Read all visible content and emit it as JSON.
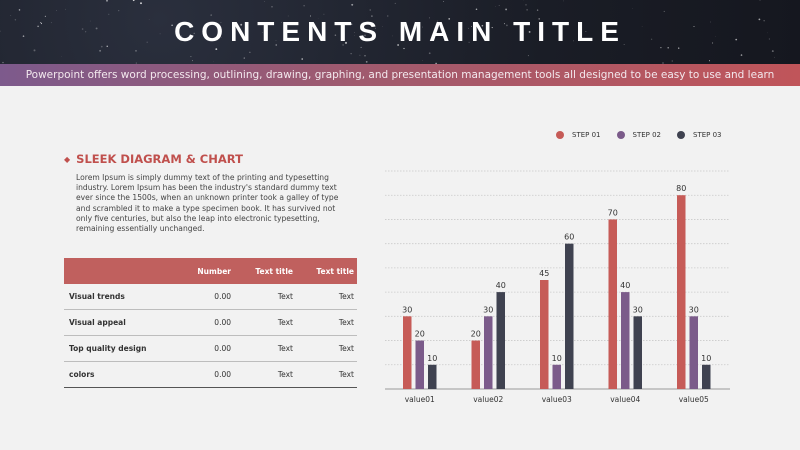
{
  "slide": {
    "title": "CONTENTS MAIN TITLE",
    "subtitle": "Powerpoint offers word processing, outlining, drawing, graphing, and presentation management tools all designed to be easy to use and learn"
  },
  "section": {
    "bullet": "◆",
    "heading": "SLEEK DIAGRAM & CHART",
    "body": "Lorem Ipsum is simply dummy text of the printing and typesetting industry. Lorem Ipsum has been the industry's standard dummy text ever since the 1500s, when an unknown printer took a galley of type and scrambled it to make a type specimen book. It has survived not only five centuries, but also the leap into electronic typesetting, remaining essentially unchanged."
  },
  "table": {
    "headers": [
      "",
      "Number",
      "Text title",
      "Text title"
    ],
    "rows": [
      [
        "Visual trends",
        "0.00",
        "Text",
        "Text"
      ],
      [
        "Visual appeal",
        "0.00",
        "Text",
        "Text"
      ],
      [
        "Top quality design",
        "0.00",
        "Text",
        "Text"
      ],
      [
        "colors",
        "0.00",
        "Text",
        "Text"
      ]
    ]
  },
  "colors": {
    "accent_red": "#c0504d",
    "step1": "#c65b57",
    "step2": "#7b5b8a",
    "step3": "#3f4250"
  },
  "chart_data": {
    "type": "bar",
    "categories": [
      "value01",
      "value02",
      "value03",
      "value04",
      "value05"
    ],
    "series": [
      {
        "name": "STEP 01",
        "values": [
          30,
          20,
          45,
          70,
          80
        ],
        "color": "#c65b57"
      },
      {
        "name": "STEP 02",
        "values": [
          20,
          30,
          10,
          40,
          30
        ],
        "color": "#7b5b8a"
      },
      {
        "name": "STEP 03",
        "values": [
          10,
          40,
          60,
          30,
          10
        ],
        "color": "#3f4250"
      }
    ],
    "data_labels": [
      [
        "30",
        "20",
        "45",
        "70",
        "80"
      ],
      [
        "20",
        "30",
        "10",
        "40",
        "30"
      ],
      [
        "10",
        "40",
        "60",
        "30",
        "10"
      ]
    ],
    "ylim": [
      0,
      90
    ],
    "grid": true,
    "legend_position": "top-right"
  }
}
